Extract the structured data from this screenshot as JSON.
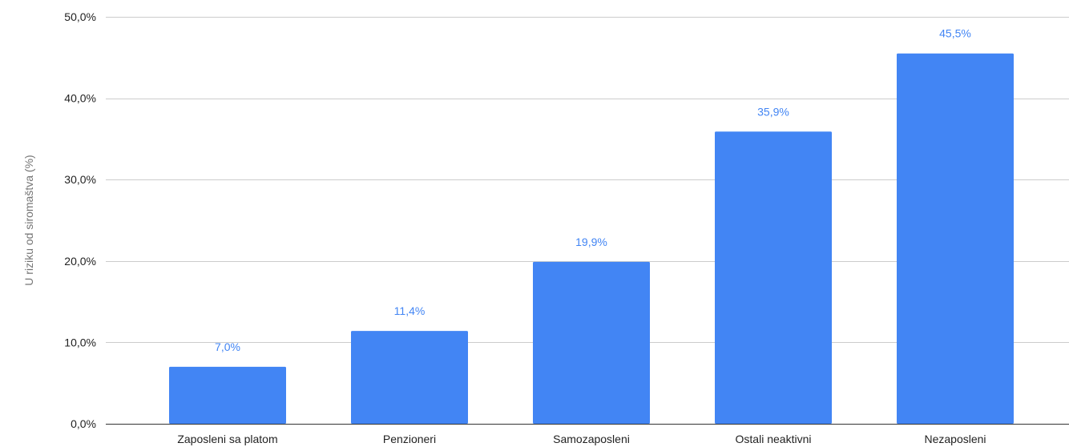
{
  "chart_data": {
    "type": "bar",
    "title": "",
    "xlabel": "",
    "ylabel": "U riziku od siromaštva (%)",
    "categories": [
      "Zaposleni sa platom",
      "Penzioneri",
      "Samozaposleni",
      "Ostali neaktivni",
      "Nezaposleni"
    ],
    "values": [
      7.0,
      11.4,
      19.9,
      35.9,
      45.5
    ],
    "data_labels": [
      "7,0%",
      "11,4%",
      "19,9%",
      "35,9%",
      "45,5%"
    ],
    "ylim": [
      0,
      50
    ],
    "yticks": [
      0,
      10,
      20,
      30,
      40,
      50
    ],
    "ytick_labels": [
      "0,0%",
      "10,0%",
      "20,0%",
      "30,0%",
      "40,0%",
      "50,0%"
    ],
    "grid": true,
    "legend": "none",
    "bar_color": "#4285f4",
    "label_color": "#4285f4"
  }
}
